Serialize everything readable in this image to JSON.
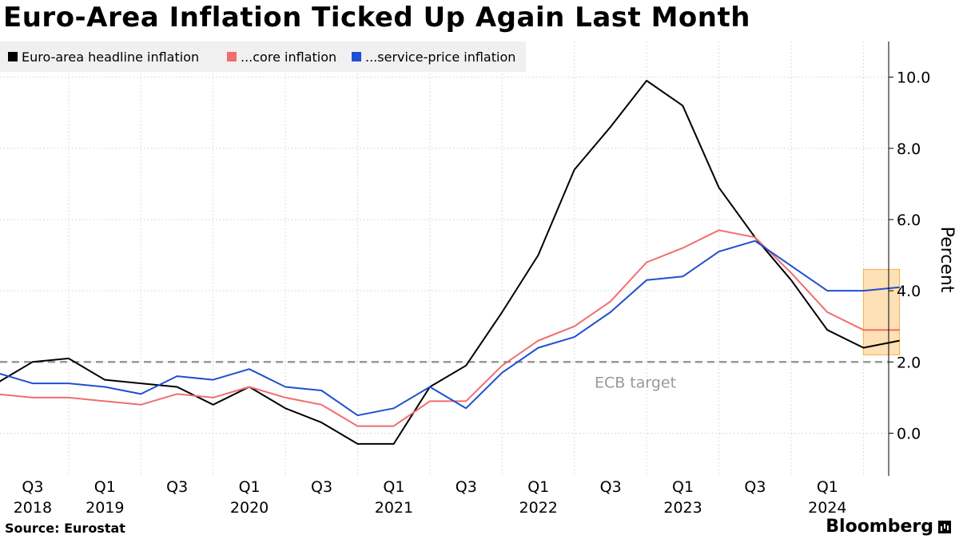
{
  "header": {
    "title": "Euro-Area Inflation Ticked Up Again Last Month"
  },
  "footer": {
    "source": "Source: Eurostat",
    "brand": "Bloomberg"
  },
  "chart_data": {
    "type": "line",
    "title": "Euro-Area Inflation Ticked Up Again Last Month",
    "ylabel": "Percent",
    "ylim": [
      -1.2,
      11
    ],
    "xlim": [
      2018.15,
      2024.3
    ],
    "y_ticks": [
      {
        "value": 10.0,
        "label": "10.0"
      },
      {
        "value": 8.0,
        "label": "8.0"
      },
      {
        "value": 6.0,
        "label": "6.0"
      },
      {
        "value": 4.0,
        "label": "4.0"
      },
      {
        "value": 2.0,
        "label": "2.0"
      },
      {
        "value": 0.0,
        "label": "0.0"
      }
    ],
    "x_ticks": [
      {
        "x": 2018.625,
        "label": "Q3",
        "year": "2018"
      },
      {
        "x": 2019.125,
        "label": "Q1",
        "year": "2019"
      },
      {
        "x": 2019.625,
        "label": "Q3",
        "year": ""
      },
      {
        "x": 2020.125,
        "label": "Q1",
        "year": "2020"
      },
      {
        "x": 2020.625,
        "label": "Q3",
        "year": ""
      },
      {
        "x": 2021.125,
        "label": "Q1",
        "year": "2021"
      },
      {
        "x": 2021.625,
        "label": "Q3",
        "year": ""
      },
      {
        "x": 2022.125,
        "label": "Q1",
        "year": "2022"
      },
      {
        "x": 2022.625,
        "label": "Q3",
        "year": ""
      },
      {
        "x": 2023.125,
        "label": "Q1",
        "year": "2023"
      },
      {
        "x": 2023.625,
        "label": "Q3",
        "year": ""
      },
      {
        "x": 2024.125,
        "label": "Q1",
        "year": "2024"
      }
    ],
    "grid": true,
    "legend_position": "top-left",
    "reference_line": {
      "y": 2.0,
      "label": "ECB target"
    },
    "highlight": {
      "x_from": 2024.125,
      "x_to": 2024.375,
      "y_from": 2.2,
      "y_to": 4.6,
      "color": "#fde0b5",
      "border": "#f0b24a"
    },
    "series": [
      {
        "name": "Euro-area headline inflation",
        "color": "#000000",
        "x": [
          2018.125,
          2018.375,
          2018.625,
          2018.875,
          2019.125,
          2019.375,
          2019.625,
          2019.875,
          2020.125,
          2020.375,
          2020.625,
          2020.875,
          2021.125,
          2021.375,
          2021.625,
          2021.875,
          2022.125,
          2022.375,
          2022.625,
          2022.875,
          2023.125,
          2023.375,
          2023.625,
          2023.875,
          2024.125,
          2024.375
        ],
        "y": [
          1.4,
          2.0,
          2.1,
          1.5,
          1.4,
          1.3,
          0.8,
          1.3,
          0.7,
          0.3,
          -0.3,
          -0.3,
          1.3,
          1.9,
          3.4,
          5.0,
          7.4,
          8.6,
          9.9,
          9.2,
          6.9,
          5.5,
          4.3,
          2.9,
          2.4,
          2.6
        ]
      },
      {
        "name": "...core inflation",
        "color": "#f26d6d",
        "x": [
          2018.125,
          2018.375,
          2018.625,
          2018.875,
          2019.125,
          2019.375,
          2019.625,
          2019.875,
          2020.125,
          2020.375,
          2020.625,
          2020.875,
          2021.125,
          2021.375,
          2021.625,
          2021.875,
          2022.125,
          2022.375,
          2022.625,
          2022.875,
          2023.125,
          2023.375,
          2023.625,
          2023.875,
          2024.125,
          2024.375
        ],
        "y": [
          1.1,
          1.0,
          1.0,
          0.9,
          0.8,
          1.1,
          1.0,
          1.3,
          1.0,
          0.8,
          0.2,
          0.2,
          0.9,
          0.9,
          1.9,
          2.6,
          3.0,
          3.7,
          4.8,
          5.2,
          5.7,
          5.5,
          4.5,
          3.4,
          2.9,
          2.9
        ]
      },
      {
        "name": "...service-price inflation",
        "color": "#1f4fd0",
        "x": [
          2018.125,
          2018.375,
          2018.625,
          2018.875,
          2019.125,
          2019.375,
          2019.625,
          2019.875,
          2020.125,
          2020.375,
          2020.625,
          2020.875,
          2021.125,
          2021.375,
          2021.625,
          2021.875,
          2022.125,
          2022.375,
          2022.625,
          2022.875,
          2023.125,
          2023.375,
          2023.625,
          2023.875,
          2024.125,
          2024.375
        ],
        "y": [
          1.7,
          1.4,
          1.4,
          1.3,
          1.1,
          1.6,
          1.5,
          1.8,
          1.3,
          1.2,
          0.5,
          0.7,
          1.3,
          0.7,
          1.7,
          2.4,
          2.7,
          3.4,
          4.3,
          4.4,
          5.1,
          5.4,
          4.7,
          4.0,
          4.0,
          4.1
        ]
      }
    ]
  }
}
